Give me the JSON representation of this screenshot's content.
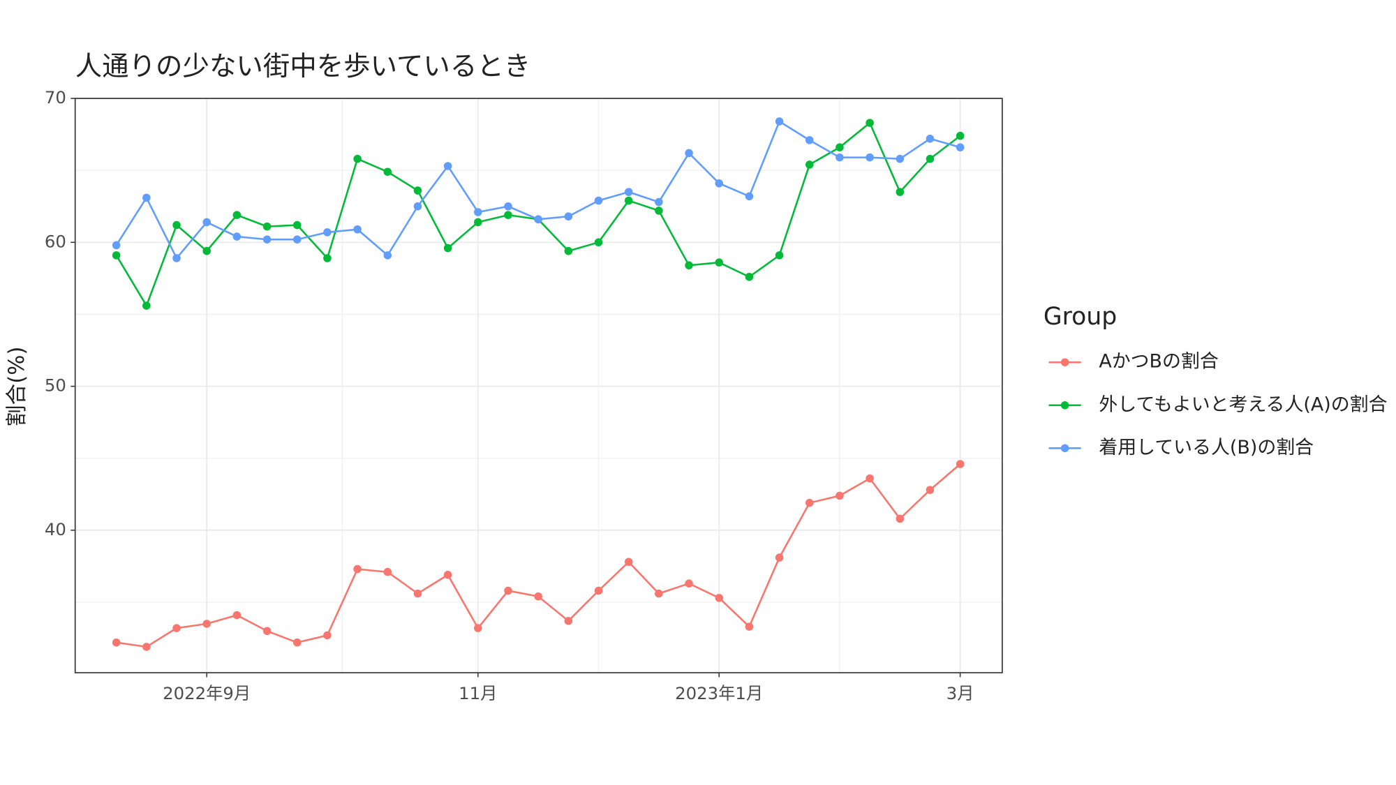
{
  "chart_data": {
    "type": "line",
    "title": "人通りの少ない街中を歩いているとき",
    "y_label": "割合(%)",
    "legend_title": "Group",
    "categories": [
      null,
      null,
      null,
      "2022年9月",
      null,
      null,
      null,
      null,
      null,
      null,
      null,
      null,
      "11月",
      null,
      null,
      null,
      null,
      null,
      null,
      null,
      "2023年1月",
      null,
      null,
      null,
      null,
      null,
      null,
      null,
      "3月"
    ],
    "series": [
      {
        "name": "AかつBの割合",
        "color": "#F8766D",
        "values": [
          32.2,
          31.9,
          33.2,
          33.5,
          34.1,
          33.0,
          32.2,
          32.7,
          37.3,
          37.1,
          35.6,
          36.9,
          33.2,
          35.8,
          35.4,
          33.7,
          35.8,
          37.8,
          35.6,
          36.3,
          35.3,
          33.3,
          38.1,
          41.9,
          42.4,
          43.6,
          40.8,
          42.8,
          44.6
        ]
      },
      {
        "name": "外してもよいと考える人(A)の割合",
        "color": "#00BA38",
        "values": [
          59.1,
          55.6,
          61.2,
          59.4,
          61.9,
          61.1,
          61.2,
          58.9,
          65.8,
          64.9,
          63.6,
          59.6,
          61.4,
          61.9,
          61.6,
          59.4,
          60.0,
          62.9,
          62.2,
          58.4,
          58.6,
          57.6,
          59.1,
          65.4,
          66.6,
          68.3,
          63.5,
          65.8,
          67.4
        ]
      },
      {
        "name": "着用している人(B)の割合",
        "color": "#619CFF",
        "values": [
          59.8,
          63.1,
          58.9,
          61.4,
          60.4,
          60.2,
          60.2,
          60.7,
          60.9,
          59.1,
          62.5,
          65.3,
          62.1,
          62.5,
          61.6,
          61.8,
          62.9,
          63.5,
          62.8,
          66.2,
          64.1,
          63.2,
          68.4,
          67.1,
          65.9,
          65.9,
          65.8,
          67.2,
          66.6
        ]
      }
    ],
    "ylim": [
      30.1,
      70
    ],
    "yticks": [
      40,
      50,
      60,
      70
    ],
    "grid": true,
    "legend": "right"
  }
}
